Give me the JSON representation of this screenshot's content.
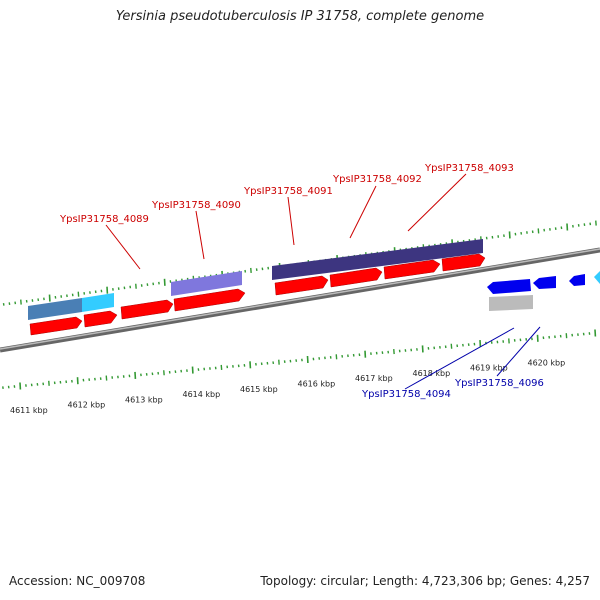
{
  "title": "Yersinia pseudotuberculosis IP 31758, complete genome",
  "footer": {
    "accession": "Accession: NC_009708",
    "summary": "Topology: circular; Length: 4,723,306 bp; Genes: 4,257"
  },
  "ticks": [
    {
      "kbp": 4611,
      "label": "4611 kbp"
    },
    {
      "kbp": 4612,
      "label": "4612 kbp"
    },
    {
      "kbp": 4613,
      "label": "4613 kbp"
    },
    {
      "kbp": 4614,
      "label": "4614 kbp"
    },
    {
      "kbp": 4615,
      "label": "4615 kbp"
    },
    {
      "kbp": 4616,
      "label": "4616 kbp"
    },
    {
      "kbp": 4617,
      "label": "4617 kbp"
    },
    {
      "kbp": 4618,
      "label": "4618 kbp"
    },
    {
      "kbp": 4619,
      "label": "4619 kbp"
    },
    {
      "kbp": 4620,
      "label": "4620 kbp"
    }
  ],
  "gene_labels_forward": [
    {
      "name": "YpsIP31758_4089",
      "color": "#cc0000"
    },
    {
      "name": "YpsIP31758_4090",
      "color": "#cc0000"
    },
    {
      "name": "YpsIP31758_4091",
      "color": "#cc0000"
    },
    {
      "name": "YpsIP31758_4092",
      "color": "#cc0000"
    },
    {
      "name": "YpsIP31758_4093",
      "color": "#cc0000"
    }
  ],
  "gene_labels_reverse": [
    {
      "name": "YpsIP31758_4094",
      "color": "#0000aa"
    },
    {
      "name": "YpsIP31758_4096",
      "color": "#0000aa"
    }
  ],
  "colors": {
    "cds": "#ff0000",
    "cds_reverse": "#0000ee",
    "backbone": "#888888",
    "tick": "#339933",
    "cog_dark": "#3d3580",
    "cog_light": "#7f77dd",
    "cog_steel": "#4a7fb5",
    "cog_cyan": "#33ccff",
    "cog_grey": "#bbbbbb"
  }
}
